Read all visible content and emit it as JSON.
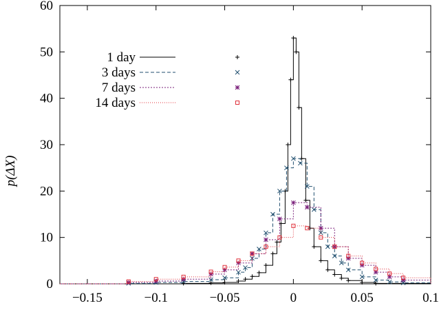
{
  "chart_data": {
    "type": "line",
    "xlabel": "",
    "ylabel": "p(ΔX)",
    "xlim": [
      -0.17,
      0.1
    ],
    "ylim": [
      0,
      60
    ],
    "x_ticks": [
      -0.15,
      -0.1,
      -0.05,
      0,
      0.05,
      0.1
    ],
    "x_tick_labels": [
      "−0.15",
      "−0.1",
      "−0.05",
      "0",
      "0.05",
      "0.1"
    ],
    "y_ticks": [
      0,
      10,
      20,
      30,
      40,
      50,
      60
    ],
    "y_tick_labels": [
      "0",
      "10",
      "20",
      "30",
      "40",
      "50",
      "60"
    ],
    "grid": false,
    "legend_position": "top-left",
    "series": [
      {
        "name": "1 day",
        "color": "#000000",
        "dash": "",
        "marker": "plus",
        "x": [
          -0.17,
          -0.08,
          -0.06,
          -0.05,
          -0.04,
          -0.035,
          -0.03,
          -0.025,
          -0.02,
          -0.015,
          -0.012,
          -0.009,
          -0.006,
          -0.004,
          -0.002,
          0,
          0.002,
          0.004,
          0.006,
          0.009,
          0.012,
          0.015,
          0.02,
          0.025,
          0.03,
          0.035,
          0.04,
          0.05,
          0.06,
          0.1
        ],
        "y": [
          0,
          0.1,
          0.2,
          0.3,
          0.6,
          1,
          1.6,
          2.4,
          4,
          6.5,
          9,
          13,
          20,
          30,
          44,
          53,
          50,
          38,
          27,
          18,
          12,
          8,
          5,
          3,
          2,
          1.2,
          0.7,
          0.3,
          0.1,
          0
        ]
      },
      {
        "name": "3 days",
        "color": "#1f4e6e",
        "dash": "5,3",
        "marker": "x",
        "x": [
          -0.17,
          -0.12,
          -0.1,
          -0.08,
          -0.06,
          -0.05,
          -0.04,
          -0.035,
          -0.03,
          -0.025,
          -0.02,
          -0.015,
          -0.01,
          -0.005,
          0,
          0.005,
          0.01,
          0.015,
          0.02,
          0.025,
          0.03,
          0.035,
          0.04,
          0.05,
          0.06,
          0.07,
          0.08,
          0.1
        ],
        "y": [
          0,
          0.1,
          0.3,
          0.5,
          0.9,
          1.3,
          2.5,
          3.5,
          5.5,
          7.5,
          11,
          15,
          20,
          25,
          27,
          26,
          21,
          16,
          11,
          8,
          6,
          4.5,
          3,
          1.5,
          0.8,
          0.4,
          0.2,
          0
        ]
      },
      {
        "name": "7 days",
        "color": "#7a1f7a",
        "dash": "2,2",
        "marker": "star",
        "x": [
          -0.17,
          -0.12,
          -0.1,
          -0.08,
          -0.06,
          -0.05,
          -0.04,
          -0.03,
          -0.02,
          -0.01,
          0,
          0.01,
          0.02,
          0.03,
          0.04,
          0.05,
          0.06,
          0.07,
          0.08,
          0.1
        ],
        "y": [
          0,
          0.3,
          0.6,
          1,
          2.1,
          3,
          4.5,
          6.5,
          9.5,
          14,
          17.5,
          16.5,
          12,
          8,
          5.5,
          4,
          2.5,
          1.5,
          0.8,
          0
        ]
      },
      {
        "name": "14 days",
        "color": "#e0303a",
        "dash": "1,2",
        "marker": "square",
        "x": [
          -0.17,
          -0.12,
          -0.1,
          -0.08,
          -0.06,
          -0.05,
          -0.04,
          -0.03,
          -0.02,
          -0.01,
          0,
          0.01,
          0.02,
          0.03,
          0.04,
          0.05,
          0.06,
          0.07,
          0.08,
          0.1
        ],
        "y": [
          0,
          0.5,
          1,
          1.5,
          2.6,
          3.6,
          5,
          6.5,
          8,
          10,
          12.5,
          12,
          10,
          8,
          6,
          4.5,
          3.2,
          2.2,
          1.3,
          0
        ]
      }
    ]
  }
}
